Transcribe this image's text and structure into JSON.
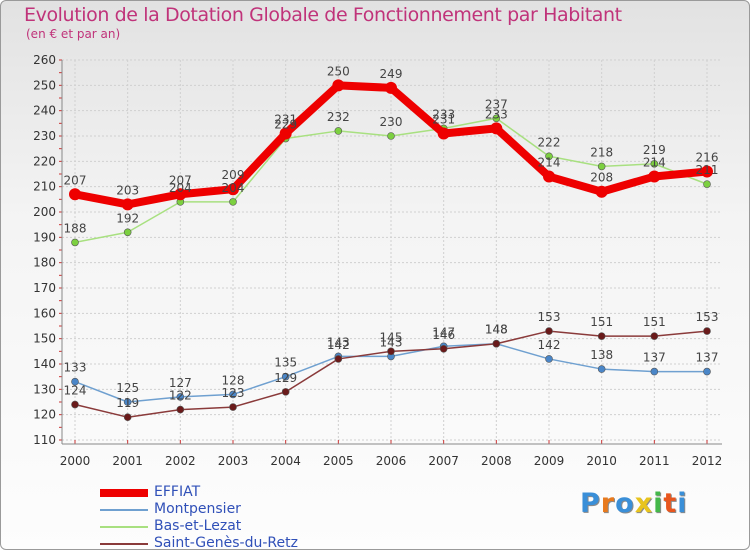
{
  "chart_data": {
    "type": "line",
    "title": "Evolution de la Dotation Globale de Fonctionnement par Habitant",
    "subtitle": "(en € et par an)",
    "xlabel": "",
    "ylabel": "",
    "x": [
      "2000",
      "2001",
      "2002",
      "2003",
      "2004",
      "2005",
      "2006",
      "2007",
      "2008",
      "2009",
      "2010",
      "2011",
      "2012"
    ],
    "ylim": [
      110,
      260
    ],
    "yticks": [
      110,
      120,
      130,
      140,
      150,
      160,
      170,
      180,
      190,
      200,
      210,
      220,
      230,
      240,
      250,
      260
    ],
    "grid": true,
    "legend_position": "bottom-left",
    "series": [
      {
        "name": "EFFIAT",
        "color": "#ee0000",
        "point_color": "#ee0000",
        "width": 8,
        "values": [
          207,
          203,
          207,
          209,
          231,
          250,
          249,
          231,
          233,
          214,
          208,
          214,
          216
        ]
      },
      {
        "name": "Montpensier",
        "color": "#6fa0d0",
        "point_color": "#4a86c8",
        "width": 1.5,
        "values": [
          133,
          125,
          127,
          128,
          135,
          143,
          143,
          147,
          148,
          142,
          138,
          137,
          137
        ]
      },
      {
        "name": "Bas-et-Lezat",
        "color": "#a8e080",
        "point_color": "#7cd040",
        "width": 1.5,
        "values": [
          188,
          192,
          204,
          204,
          229,
          232,
          230,
          233,
          237,
          222,
          218,
          219,
          211
        ]
      },
      {
        "name": "Saint-Genès-du-Retz",
        "color": "#8a3a3a",
        "point_color": "#6a1a1a",
        "width": 1.5,
        "values": [
          124,
          119,
          122,
          123,
          129,
          142,
          145,
          146,
          148,
          153,
          151,
          151,
          153
        ]
      }
    ]
  },
  "logo": {
    "letters": [
      "P",
      "r",
      "o",
      "x",
      "i",
      "t",
      "i"
    ],
    "colors": [
      "#3a8fd8",
      "#e87a1e",
      "#3a8fd8",
      "#e8c41e",
      "#44b84a",
      "#e8561e",
      "#3a8fd8"
    ]
  }
}
